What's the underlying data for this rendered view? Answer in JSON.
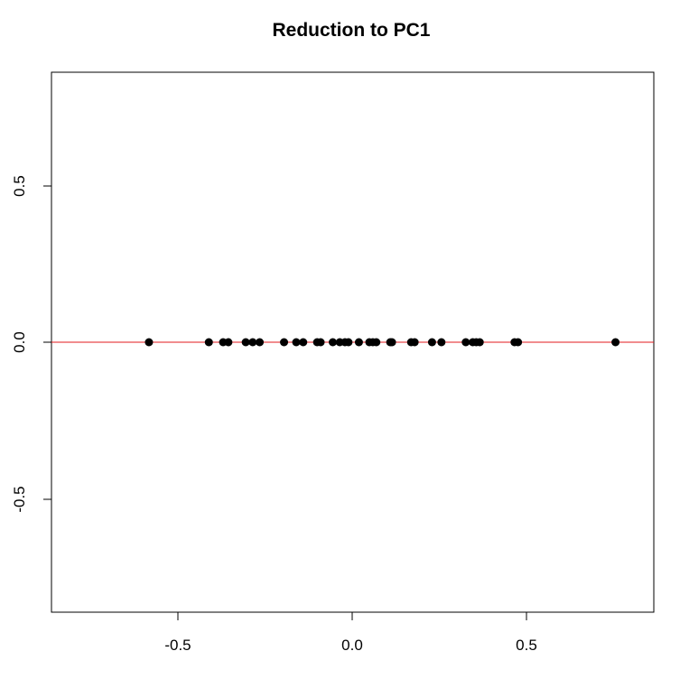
{
  "chart_data": {
    "type": "scatter",
    "title": "Reduction to PC1",
    "xlabel": "",
    "ylabel": "",
    "xlim": [
      -0.865,
      0.865
    ],
    "ylim": [
      -0.865,
      0.865
    ],
    "x_ticks": [
      "-0.5",
      "0.0",
      "0.5"
    ],
    "y_ticks": [
      "-0.5",
      "0.0",
      "0.5"
    ],
    "grid": false,
    "reference_line": {
      "type": "horizontal",
      "y": 0,
      "color": "#e31a1c"
    },
    "point_color": "#000000",
    "series": [
      {
        "points": [
          {
            "x": -0.585,
            "y": 0
          },
          {
            "x": -0.413,
            "y": 0
          },
          {
            "x": -0.372,
            "y": 0
          },
          {
            "x": -0.357,
            "y": 0
          },
          {
            "x": -0.307,
            "y": 0
          },
          {
            "x": -0.287,
            "y": 0
          },
          {
            "x": -0.267,
            "y": 0
          },
          {
            "x": -0.197,
            "y": 0
          },
          {
            "x": -0.162,
            "y": 0
          },
          {
            "x": -0.142,
            "y": 0
          },
          {
            "x": -0.102,
            "y": 0
          },
          {
            "x": -0.092,
            "y": 0
          },
          {
            "x": -0.057,
            "y": 0
          },
          {
            "x": -0.037,
            "y": 0
          },
          {
            "x": -0.022,
            "y": 0
          },
          {
            "x": -0.012,
            "y": 0
          },
          {
            "x": 0.018,
            "y": 0
          },
          {
            "x": 0.048,
            "y": 0
          },
          {
            "x": 0.058,
            "y": 0
          },
          {
            "x": 0.068,
            "y": 0
          },
          {
            "x": 0.108,
            "y": 0
          },
          {
            "x": 0.113,
            "y": 0
          },
          {
            "x": 0.168,
            "y": 0
          },
          {
            "x": 0.178,
            "y": 0
          },
          {
            "x": 0.228,
            "y": 0
          },
          {
            "x": 0.255,
            "y": 0
          },
          {
            "x": 0.325,
            "y": 0
          },
          {
            "x": 0.345,
            "y": 0
          },
          {
            "x": 0.355,
            "y": 0
          },
          {
            "x": 0.365,
            "y": 0
          },
          {
            "x": 0.465,
            "y": 0
          },
          {
            "x": 0.475,
            "y": 0
          },
          {
            "x": 0.755,
            "y": 0
          }
        ]
      }
    ]
  }
}
